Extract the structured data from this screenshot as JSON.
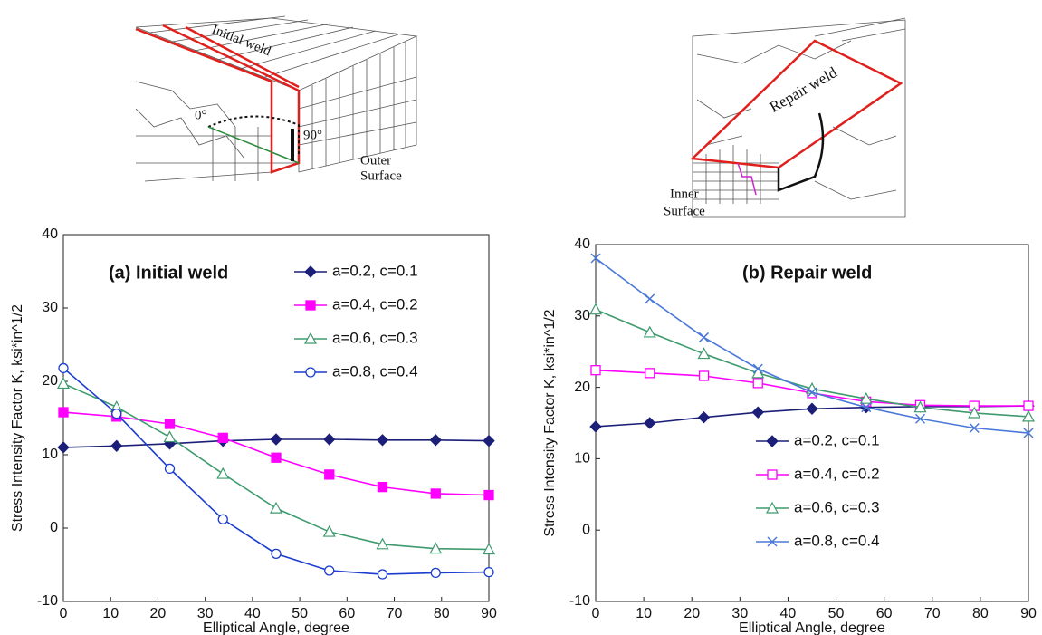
{
  "chart_data": [
    {
      "type": "line",
      "title": "(a) Initial weld",
      "xlabel": "Elliptical Angle, degree",
      "ylabel": "Stress Intensity Factor K, ksi*in^1/2",
      "x": [
        0,
        11.25,
        22.5,
        33.75,
        45,
        56.25,
        67.5,
        78.75,
        90
      ],
      "xlim": [
        0,
        90
      ],
      "ylim": [
        -10,
        40
      ],
      "xticks": [
        0,
        10,
        20,
        30,
        40,
        50,
        60,
        70,
        80,
        90
      ],
      "yticks": [
        -10,
        0,
        10,
        20,
        30,
        40
      ],
      "legend": "upper right",
      "series": [
        {
          "name": "a=0.2, c=0.1",
          "color": "#1b1f78",
          "marker": "diamond",
          "values": [
            11,
            11.2,
            11.5,
            11.9,
            12.1,
            12.1,
            12,
            12,
            11.9
          ]
        },
        {
          "name": "a=0.4, c=0.2",
          "color": "#ff00ff",
          "marker": "square",
          "values": [
            15.8,
            15.2,
            14.2,
            12.3,
            9.6,
            7.3,
            5.6,
            4.7,
            4.5
          ]
        },
        {
          "name": "a=0.6, c=0.3",
          "color": "#3f9a6e",
          "marker": "triangle-open",
          "values": [
            19.7,
            16.5,
            12.4,
            7.4,
            2.7,
            -0.5,
            -2.2,
            -2.8,
            -2.9
          ]
        },
        {
          "name": "a=0.8, c=0.4",
          "color": "#1c3ccf",
          "marker": "circle-open",
          "values": [
            21.8,
            15.6,
            8.1,
            1.2,
            -3.5,
            -5.8,
            -6.3,
            -6.1,
            -6
          ]
        }
      ]
    },
    {
      "type": "line",
      "title": "(b) Repair weld",
      "xlabel": "Elliptical Angle, degree",
      "ylabel": "Stress Intensity Factor K, ksi*in^1/2",
      "x": [
        0,
        11.25,
        22.5,
        33.75,
        45,
        56.25,
        67.5,
        78.75,
        90
      ],
      "xlim": [
        0,
        90
      ],
      "ylim": [
        -10,
        40
      ],
      "xticks": [
        0,
        10,
        20,
        30,
        40,
        50,
        60,
        70,
        80,
        90
      ],
      "yticks": [
        -10,
        0,
        10,
        20,
        30,
        40
      ],
      "legend": "lower center",
      "series": [
        {
          "name": "a=0.2, c=0.1",
          "color": "#1b1f78",
          "marker": "diamond",
          "values": [
            14.5,
            15,
            15.8,
            16.5,
            17,
            17.2,
            17.3,
            17.3,
            17.4
          ]
        },
        {
          "name": "a=0.4, c=0.2",
          "color": "#ff00ff",
          "marker": "square-open",
          "values": [
            22.4,
            22,
            21.6,
            20.6,
            19.2,
            18,
            17.5,
            17.4,
            17.4
          ]
        },
        {
          "name": "a=0.6, c=0.3",
          "color": "#3f9a6e",
          "marker": "triangle-open",
          "values": [
            30.9,
            27.7,
            24.7,
            22,
            19.8,
            18.4,
            17.2,
            16.4,
            15.9
          ]
        },
        {
          "name": "a=0.8, c=0.4",
          "color": "#4a78d8",
          "marker": "x",
          "values": [
            38.1,
            32.4,
            27,
            22.6,
            19.3,
            17.2,
            15.6,
            14.3,
            13.6
          ]
        }
      ]
    }
  ],
  "diagrams": [
    {
      "labels": [
        "Initial weld",
        "0°",
        "90°",
        "Outer",
        "Surface"
      ]
    },
    {
      "labels": [
        "Repair weld",
        "Inner",
        "Surface"
      ]
    }
  ]
}
